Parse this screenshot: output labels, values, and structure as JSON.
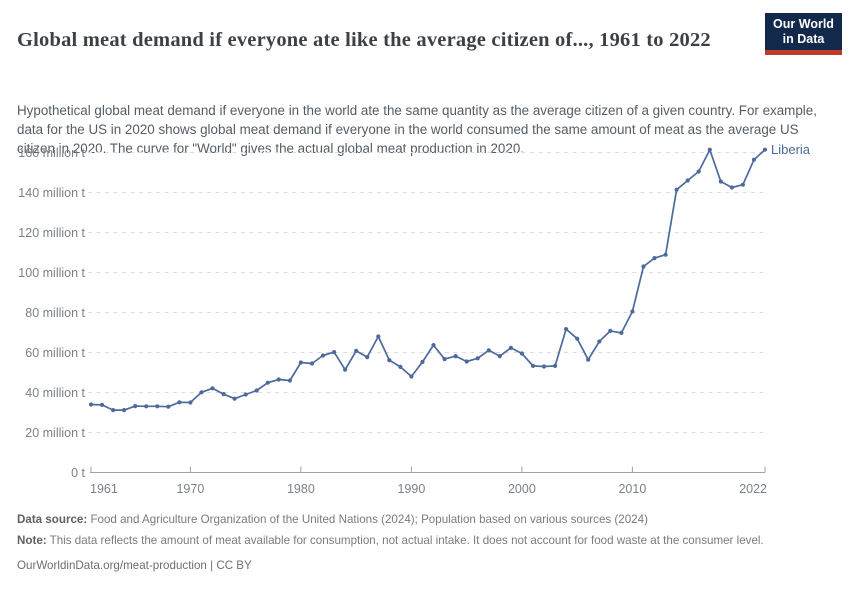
{
  "header": {
    "title": "Global meat demand if everyone ate like the average citizen of..., 1961 to 2022",
    "subtitle": "Hypothetical global meat demand if everyone in the world ate the same quantity as the average citizen of a given country. For example, data for the US in 2020 shows global meat demand if everyone in the world consumed the same amount of meat as the average US citizen in 2020. The curve for \"World\" gives the actual global meat production in 2020."
  },
  "logo": {
    "line1": "Our World",
    "line2": "in Data"
  },
  "colors": {
    "line": "#4c6a9c",
    "series_label": "#4c6a9c",
    "logo_navy": "#12294b",
    "logo_red": "#c0392b",
    "gridline": "#dcdcdc",
    "axis": "#a3a3a3",
    "tick_text": "#7c8187"
  },
  "chart_data": {
    "type": "line",
    "title": "Global meat demand if everyone ate like the average citizen of..., 1961 to 2022",
    "xlabel": "",
    "ylabel": "",
    "unit": "million t",
    "x_range": [
      1961,
      2022
    ],
    "ylim": [
      0,
      160
    ],
    "grid": "horizontal-dashed",
    "legend_position": "end-of-line",
    "xticks": [
      1961,
      1970,
      1980,
      1990,
      2000,
      2010,
      2022
    ],
    "yticks": [
      {
        "value": 0,
        "label": "0 t"
      },
      {
        "value": 20,
        "label": "20 million t"
      },
      {
        "value": 40,
        "label": "40 million t"
      },
      {
        "value": 60,
        "label": "60 million t"
      },
      {
        "value": 80,
        "label": "80 million t"
      },
      {
        "value": 100,
        "label": "100 million t"
      },
      {
        "value": 120,
        "label": "120 million t"
      },
      {
        "value": 140,
        "label": "140 million t"
      },
      {
        "value": 160,
        "label": "160 million t"
      }
    ],
    "years": [
      1961,
      1962,
      1963,
      1964,
      1965,
      1966,
      1967,
      1968,
      1969,
      1970,
      1971,
      1972,
      1973,
      1974,
      1975,
      1976,
      1977,
      1978,
      1979,
      1980,
      1981,
      1982,
      1983,
      1984,
      1985,
      1986,
      1987,
      1988,
      1989,
      1990,
      1991,
      1992,
      1993,
      1994,
      1995,
      1996,
      1997,
      1998,
      1999,
      2000,
      2001,
      2002,
      2003,
      2004,
      2005,
      2006,
      2007,
      2008,
      2009,
      2010,
      2011,
      2012,
      2013,
      2014,
      2015,
      2016,
      2017,
      2018,
      2019,
      2020,
      2021,
      2022
    ],
    "series": [
      {
        "name": "Liberia",
        "color": "#4c6a9c",
        "values": [
          34,
          33.8,
          31.2,
          31.2,
          33.2,
          33.1,
          33.1,
          32.9,
          35.1,
          35,
          40.1,
          42.1,
          39.2,
          36.9,
          39,
          41,
          44.9,
          46.5,
          46,
          55,
          54.5,
          58.5,
          60.2,
          51.4,
          60.8,
          57.7,
          68,
          56.2,
          52.8,
          48,
          55.3,
          63.7,
          56.7,
          58.2,
          55.5,
          57.1,
          61.1,
          58.2,
          62.3,
          59.5,
          53.3,
          53,
          53.3,
          71.7,
          66.9,
          56.4,
          65.5,
          70.8,
          69.8,
          80.5,
          103,
          107.2,
          108.9,
          141.4,
          146,
          150.5,
          161.4,
          145.5,
          142.5,
          143.9,
          156.4,
          161.4
        ]
      }
    ]
  },
  "footer": {
    "data_source_label": "Data source:",
    "data_source_text": " Food and Agriculture Organization of the United Nations (2024); Population based on various sources (2024)",
    "note_label": "Note:",
    "note_text": " This data reflects the amount of meat available for consumption, not actual intake. It does not account for food waste at the consumer level.",
    "citation": "OurWorldinData.org/meat-production | CC BY"
  }
}
